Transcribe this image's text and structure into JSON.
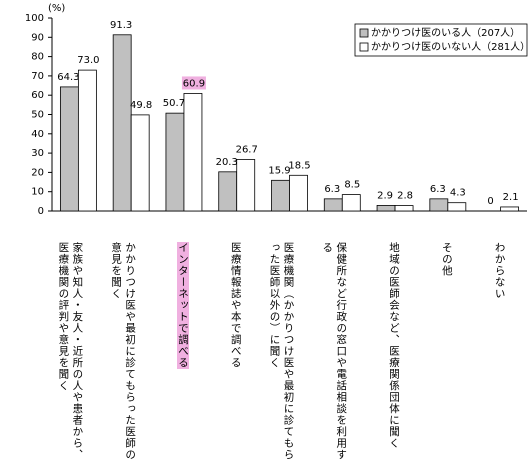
{
  "chart_data": {
    "type": "bar",
    "y_axis_label": "(%)",
    "categories": [
      "家族や知人・友人・近所の人や患者から、医療機関の評判や意見を聞く",
      "かかりつけ医や最初に診てもらった医師の意見を聞く",
      "インターネットで調べる",
      "医療情報誌や本で調べる",
      "医療機関（かかりつけ医や最初に診てもらった医師以外の）に聞く",
      "保健所など行政の窓口や電話相談を利用する",
      "地域の医師会など、医療関係団体に聞く",
      "その他",
      "わからない"
    ],
    "series": [
      {
        "name": "かかりつけ医のいる人（207人）",
        "color": "#c0c0c0",
        "values": [
          64.3,
          91.3,
          50.7,
          20.3,
          15.9,
          6.3,
          2.9,
          6.3,
          0
        ]
      },
      {
        "name": "かかりつけ医のいない人（281人）",
        "color": "#ffffff",
        "values": [
          73.0,
          49.8,
          60.9,
          26.7,
          18.5,
          8.5,
          2.8,
          4.3,
          2.1
        ],
        "value_labels": [
          "73.0",
          "49.8",
          "60.9",
          "26.7",
          "18.5",
          "8.5",
          "2.8",
          "4.3",
          "2.1"
        ]
      }
    ],
    "highlight_index": 2,
    "highlight_color": "#f0b0e0",
    "ylim": [
      0,
      100
    ],
    "yticks": [
      0,
      10,
      20,
      30,
      40,
      50,
      60,
      70,
      80,
      90,
      100
    ],
    "legend": "top-right"
  }
}
